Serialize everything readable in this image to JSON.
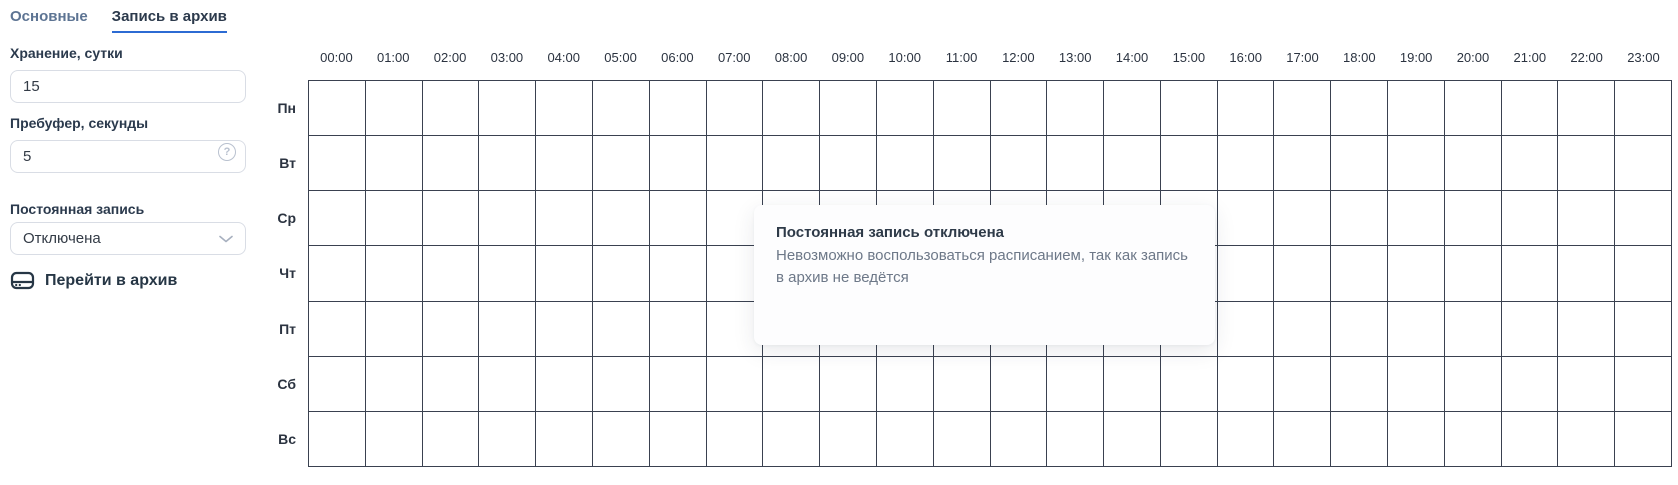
{
  "tabs": [
    {
      "label": "Основные",
      "active": false
    },
    {
      "label": "Запись в архив",
      "active": true
    }
  ],
  "form": {
    "storage": {
      "label": "Хранение, сутки",
      "value": "15"
    },
    "prebuffer": {
      "label": "Пребуфер, секунды",
      "value": "5",
      "help_glyph": "?"
    },
    "constant_recording": {
      "label": "Постоянная запись",
      "value": "Отключена"
    },
    "archive_link": {
      "label": "Перейти в архив"
    }
  },
  "schedule": {
    "hours": [
      "00:00",
      "01:00",
      "02:00",
      "03:00",
      "04:00",
      "05:00",
      "06:00",
      "07:00",
      "08:00",
      "09:00",
      "10:00",
      "11:00",
      "12:00",
      "13:00",
      "14:00",
      "15:00",
      "16:00",
      "17:00",
      "18:00",
      "19:00",
      "20:00",
      "21:00",
      "22:00",
      "23:00"
    ],
    "days": [
      "Пн",
      "Вт",
      "Ср",
      "Чт",
      "Пт",
      "Сб",
      "Вс"
    ],
    "tooltip": {
      "title": "Постоянная запись отключена",
      "body": "Невозможно воспользоваться расписанием, так как запись в архив не ведётся"
    }
  },
  "colors": {
    "accent_blue": "#2c6bd3",
    "tab_inactive": "#5d7493",
    "tab_active": "#2c3a4c",
    "grid_line": "#3a4150",
    "label_dark": "#2b3a4d",
    "muted_text": "#6d7888",
    "input_border": "#d9dde5",
    "help_icon": "#b9c1cf"
  }
}
